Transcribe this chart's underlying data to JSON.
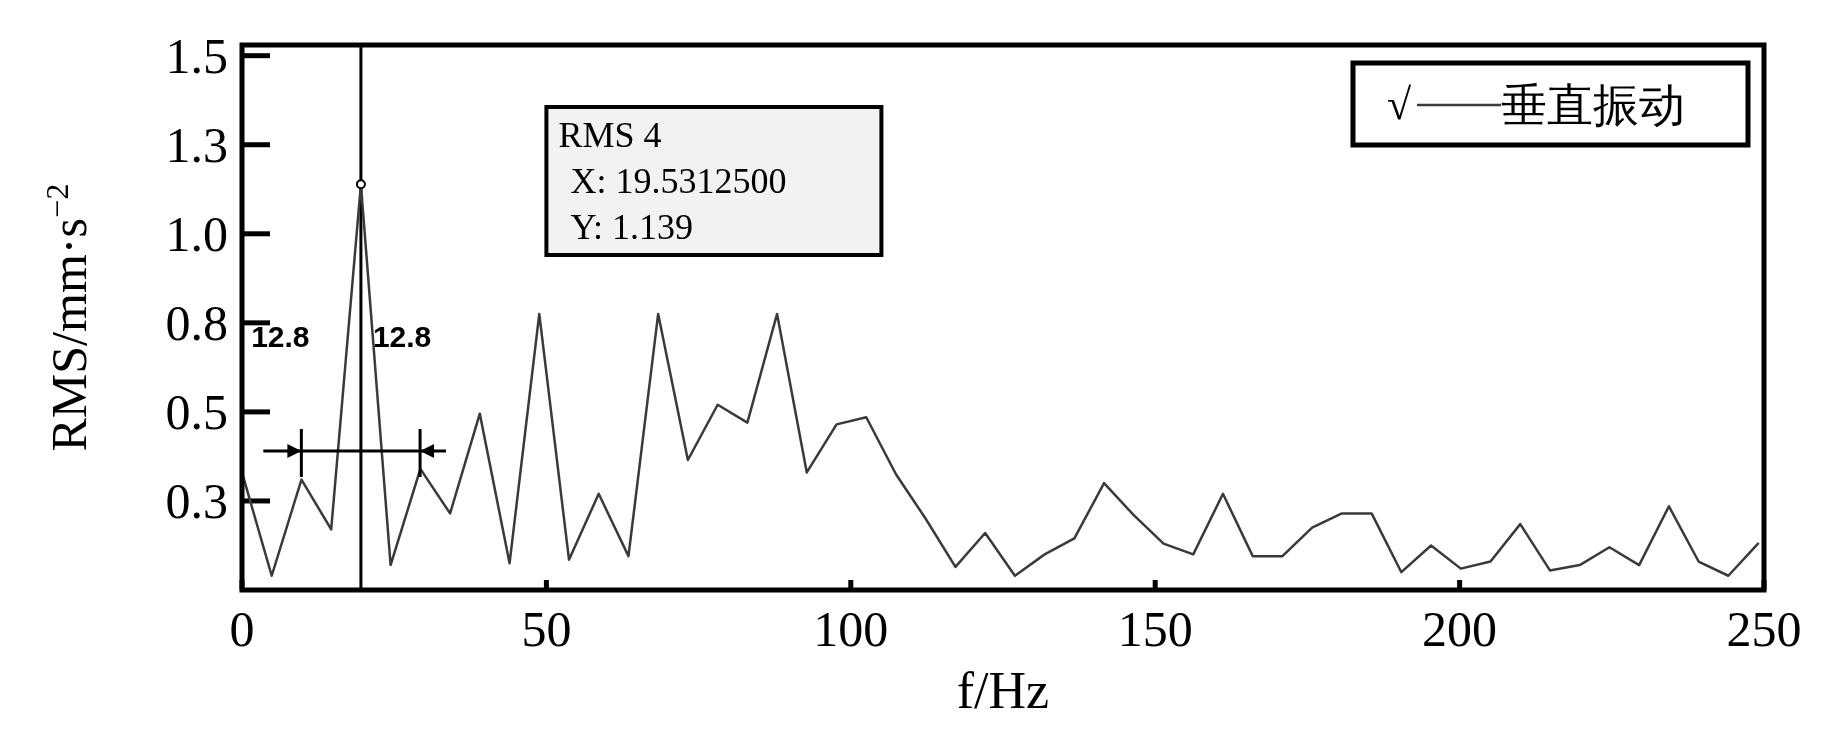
{
  "chart_data": {
    "type": "line",
    "xlabel": "f/Hz",
    "ylabel": "RMS/mm·s$^{−2}$",
    "xlim": [
      0,
      250
    ],
    "ylim": [
      0,
      1.53
    ],
    "xticks": [
      0,
      50,
      100,
      150,
      200,
      250
    ],
    "yticks": [
      {
        "value": 0.25,
        "label": "0.3"
      },
      {
        "value": 0.5,
        "label": "0.5"
      },
      {
        "value": 0.75,
        "label": "0.8"
      },
      {
        "value": 1.0,
        "label": "1.0"
      },
      {
        "value": 1.25,
        "label": "1.3"
      },
      {
        "value": 1.5,
        "label": "1.5"
      }
    ],
    "legend": "top right",
    "ref_lines": [
      {
        "axis": "x",
        "value": 19.53125,
        "color": "#000000"
      }
    ],
    "annotations": [
      "RMS 4\nX: 19.5312500\nY: 1.139",
      "12.8",
      "12.8",
      "√"
    ],
    "series": [
      {
        "name": "垂直振动",
        "color": "#3a3a3a",
        "x": [
          0,
          4.88,
          9.77,
          14.65,
          19.53125,
          24.41,
          29.3,
          34.18,
          39.06,
          43.95,
          48.83,
          53.71,
          58.59,
          63.48,
          68.36,
          73.24,
          78.13,
          83.01,
          87.89,
          92.77,
          97.66,
          102.54,
          107.42,
          112.3,
          117.19,
          122.07,
          126.95,
          131.84,
          136.72,
          141.6,
          146.48,
          151.37,
          156.25,
          161.13,
          166.02,
          170.9,
          175.78,
          180.66,
          185.55,
          190.43,
          195.31,
          200.2,
          205.08,
          209.96,
          214.84,
          219.73,
          224.61,
          229.49,
          234.38,
          239.26,
          244.14,
          249.02
        ],
        "values": [
          0.33,
          0.04,
          0.31,
          0.17,
          1.139,
          0.07,
          0.34,
          0.215,
          0.495,
          0.075,
          0.775,
          0.085,
          0.27,
          0.095,
          0.775,
          0.365,
          0.52,
          0.47,
          0.775,
          0.33,
          0.465,
          0.485,
          0.325,
          0.2,
          0.065,
          0.16,
          0.04,
          0.1,
          0.145,
          0.3,
          0.21,
          0.13,
          0.1,
          0.27,
          0.095,
          0.095,
          0.175,
          0.215,
          0.215,
          0.05,
          0.125,
          0.06,
          0.08,
          0.185,
          0.055,
          0.07,
          0.12,
          0.07,
          0.235,
          0.08,
          0.04,
          0.13
        ]
      }
    ]
  }
}
